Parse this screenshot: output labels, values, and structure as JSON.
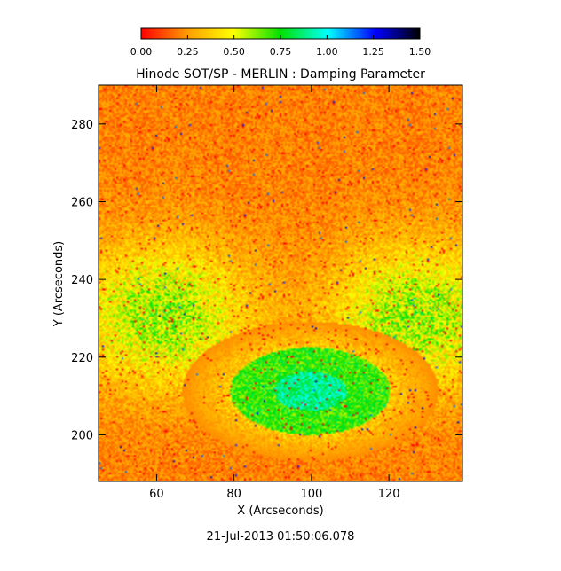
{
  "chart_data": {
    "type": "heatmap",
    "title": "Hinode SOT/SP - MERLIN : Damping Parameter",
    "xlabel": "X (Arcseconds)",
    "ylabel": "Y (Arcseconds)",
    "xlim": [
      45,
      139
    ],
    "ylim": [
      188,
      290
    ],
    "x_ticks": [
      60,
      80,
      100,
      120
    ],
    "y_ticks": [
      200,
      220,
      240,
      260,
      280
    ],
    "colorbar": {
      "range": [
        0.0,
        1.5
      ],
      "tick_labels": [
        "0.00",
        "0.25",
        "0.50",
        "0.75",
        "1.00",
        "1.25",
        "1.50"
      ],
      "colors": [
        "#ff0000",
        "#ffa000",
        "#ffff00",
        "#00e000",
        "#00ffff",
        "#0000ff",
        "#000000"
      ]
    },
    "timestamp": "21-Jul-2013 01:50:06.078"
  }
}
